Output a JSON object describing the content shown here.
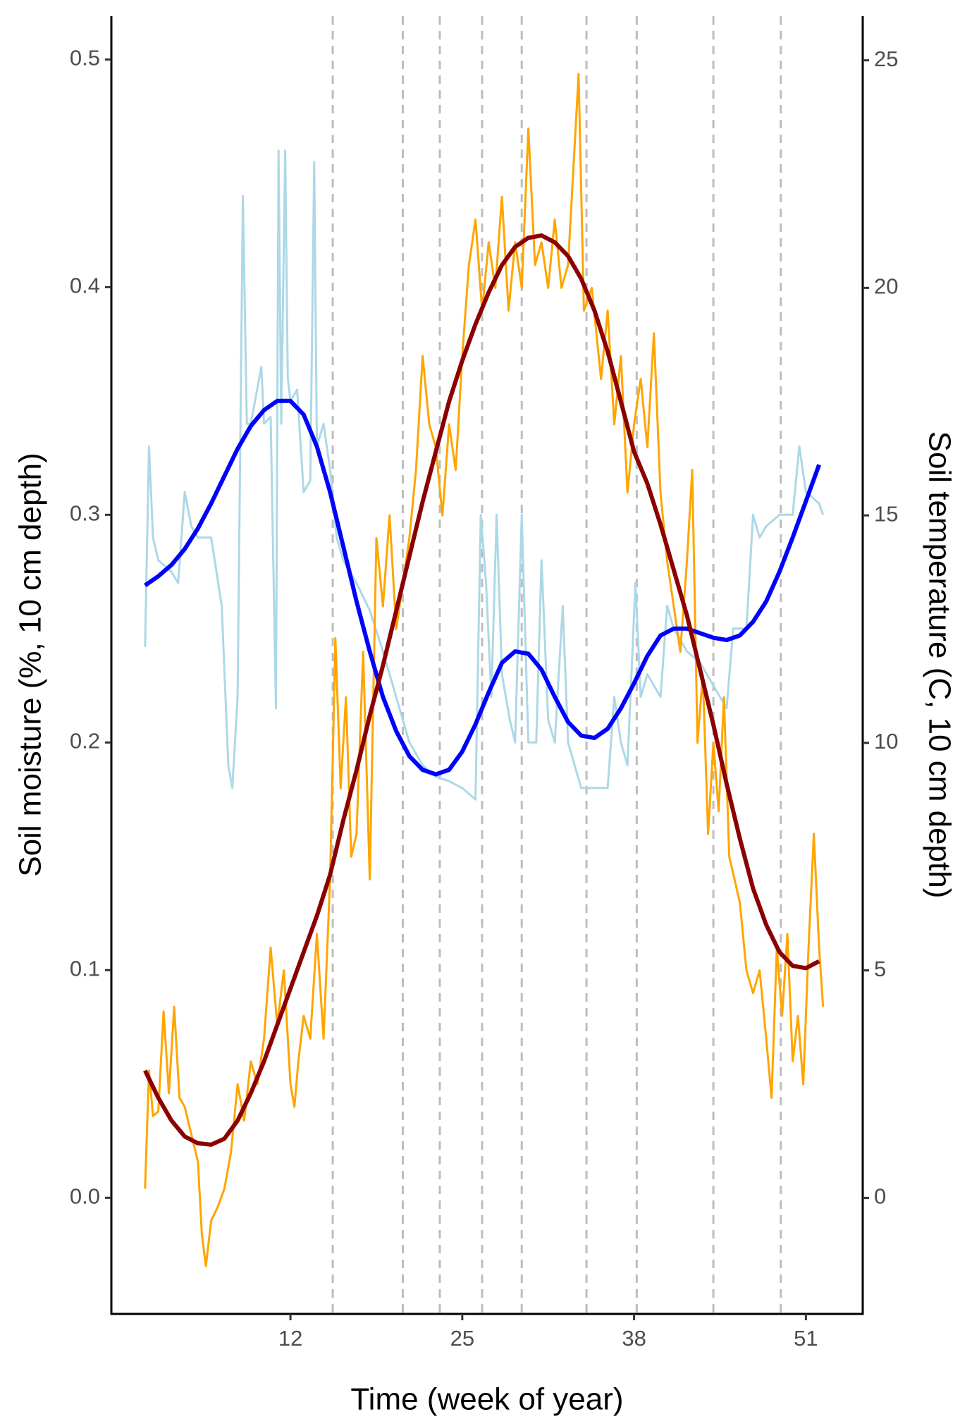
{
  "chart_data": {
    "type": "line",
    "xlabel": "Time (week of year)",
    "ylabel": "Soil moisture (%, 10 cm depth)",
    "y2label": "Soil temperature (C, 10 cm depth)",
    "ylabel_color": "#0000ff",
    "y2label_color": "#ffa500",
    "xlim": [
      -1.55,
      55.3
    ],
    "xticks": [
      12,
      25,
      38,
      51
    ],
    "ylim": [
      -0.051,
      0.519
    ],
    "yticks": [
      {
        "value": 0,
        "label": "0.0"
      },
      0.1,
      0.2,
      0.3,
      0.4,
      0.5
    ],
    "y2lim": [
      -2.55,
      25.97
    ],
    "y2ticks": [
      0,
      5,
      10,
      15,
      20,
      25
    ],
    "grid": false,
    "vlines": [
      15.2,
      20.5,
      23.3,
      26.5,
      29.5,
      34.4,
      38.2,
      44.0,
      49.1
    ],
    "vline_color": "#bdbdbd",
    "series": [
      {
        "color": "#add8e6",
        "width": 3,
        "x": [
          1.0,
          1.3,
          1.6,
          2,
          3,
          3.5,
          4,
          4.5,
          5,
          6,
          6.8,
          7.3,
          7.6,
          8,
          8.4,
          8.7,
          9,
          9.8,
          10,
          10.5,
          10.9,
          11.1,
          11.3,
          11.6,
          11.8,
          12,
          12.5,
          13,
          13.5,
          13.8,
          14,
          14.5,
          15,
          15.5,
          16,
          17,
          18,
          19,
          20,
          21,
          22,
          23,
          24,
          25,
          26,
          26.4,
          26.8,
          27.2,
          27.6,
          28,
          28.6,
          29,
          29.5,
          30,
          30.6,
          31,
          31.5,
          32,
          32.6,
          33,
          33.5,
          34,
          35,
          36,
          36.5,
          37,
          37.5,
          38.1,
          38.5,
          39,
          40,
          40.5,
          41,
          42,
          43,
          44,
          45,
          45.5,
          46,
          46.5,
          47,
          47.5,
          48,
          49,
          50,
          50.5,
          51,
          52,
          52.3
        ],
        "values": [
          0.242,
          0.33,
          0.29,
          0.28,
          0.275,
          0.27,
          0.31,
          0.295,
          0.29,
          0.29,
          0.26,
          0.19,
          0.18,
          0.22,
          0.44,
          0.34,
          0.34,
          0.365,
          0.34,
          0.343,
          0.215,
          0.46,
          0.34,
          0.46,
          0.36,
          0.35,
          0.355,
          0.31,
          0.315,
          0.455,
          0.33,
          0.34,
          0.32,
          0.29,
          0.28,
          0.27,
          0.258,
          0.24,
          0.22,
          0.2,
          0.19,
          0.185,
          0.183,
          0.18,
          0.175,
          0.3,
          0.27,
          0.22,
          0.3,
          0.23,
          0.21,
          0.2,
          0.3,
          0.2,
          0.2,
          0.28,
          0.21,
          0.2,
          0.26,
          0.2,
          0.19,
          0.18,
          0.18,
          0.18,
          0.22,
          0.2,
          0.19,
          0.27,
          0.22,
          0.23,
          0.22,
          0.26,
          0.25,
          0.24,
          0.235,
          0.225,
          0.215,
          0.25,
          0.25,
          0.25,
          0.3,
          0.29,
          0.295,
          0.3,
          0.3,
          0.33,
          0.31,
          0.305,
          0.3
        ]
      },
      {
        "color": "#ffa500",
        "width": 3,
        "axis": "y2",
        "x": [
          1.0,
          1.3,
          1.6,
          2,
          2.4,
          2.8,
          3.2,
          3.6,
          4,
          4.5,
          5,
          5.3,
          5.6,
          6,
          6.5,
          7,
          7.5,
          8,
          8.5,
          9,
          9.5,
          10,
          10.5,
          11,
          11.5,
          12,
          12.3,
          12.6,
          13,
          13.5,
          14,
          14.5,
          15,
          15.4,
          15.8,
          16.2,
          16.6,
          17,
          17.5,
          18,
          18.5,
          19,
          19.5,
          20,
          20.5,
          21,
          21.5,
          22,
          22.5,
          23,
          23.5,
          24,
          24.5,
          25,
          25.5,
          26,
          26.5,
          27,
          27.5,
          28,
          28.5,
          29,
          29.5,
          30,
          30.5,
          31,
          31.5,
          32,
          32.5,
          33,
          33.8,
          34.2,
          34.8,
          35.5,
          36,
          36.5,
          37,
          37.5,
          38,
          38.5,
          39,
          39.5,
          40,
          40.5,
          41,
          41.5,
          42,
          42.4,
          42.8,
          43.2,
          43.6,
          44,
          44.4,
          44.8,
          45.2,
          45.6,
          46,
          46.5,
          47,
          47.5,
          48,
          48.4,
          48.8,
          49.2,
          49.6,
          50,
          50.4,
          50.8,
          51.2,
          51.6,
          52,
          52.3
        ],
        "values": [
          0.2,
          2.8,
          1.8,
          1.9,
          4.1,
          2.3,
          4.2,
          2.2,
          2.0,
          1.4,
          0.8,
          -0.8,
          -1.5,
          -0.5,
          -0.2,
          0.2,
          1.0,
          2.5,
          1.7,
          3.0,
          2.5,
          3.5,
          5.5,
          3.8,
          5.0,
          2.5,
          2.0,
          3.0,
          4.0,
          3.5,
          5.8,
          3.5,
          7.0,
          12.3,
          9.0,
          11.0,
          7.5,
          8.0,
          12.0,
          7.0,
          14.5,
          13.0,
          15.0,
          12.5,
          13.5,
          14.5,
          16.0,
          18.5,
          17.0,
          16.5,
          15.0,
          17.0,
          16.0,
          18.5,
          20.5,
          21.5,
          19.5,
          21.0,
          20.0,
          22.0,
          19.5,
          21.0,
          20.0,
          23.5,
          20.5,
          21.0,
          20.0,
          21.5,
          20.0,
          20.5,
          24.7,
          19.5,
          20.0,
          18.0,
          19.5,
          17.0,
          18.5,
          15.5,
          17.0,
          18.0,
          16.5,
          19.0,
          15.5,
          14.0,
          13.0,
          12.0,
          14.0,
          16.0,
          10.0,
          11.5,
          8.0,
          10.0,
          8.5,
          11.0,
          7.5,
          7.0,
          6.5,
          5.0,
          4.5,
          5.0,
          3.5,
          2.2,
          5.5,
          4.0,
          5.8,
          3.0,
          4.0,
          2.5,
          5.5,
          8.0,
          5.5,
          4.2
        ]
      },
      {
        "color": "#0000ff",
        "width": 6,
        "x": [
          1,
          2,
          3,
          4,
          5,
          6,
          7,
          8,
          9,
          10,
          11,
          12,
          13,
          14,
          15,
          16,
          17,
          18,
          19,
          20,
          21,
          22,
          23,
          24,
          25,
          26,
          27,
          28,
          29,
          30,
          31,
          32,
          33,
          34,
          35,
          36,
          37,
          38,
          39,
          40,
          41,
          42,
          43,
          44,
          45,
          46,
          47,
          48,
          49,
          50,
          51,
          52
        ],
        "values": [
          0.269,
          0.273,
          0.278,
          0.285,
          0.294,
          0.305,
          0.317,
          0.329,
          0.339,
          0.346,
          0.35,
          0.35,
          0.344,
          0.33,
          0.31,
          0.286,
          0.262,
          0.24,
          0.22,
          0.205,
          0.194,
          0.188,
          0.186,
          0.188,
          0.196,
          0.208,
          0.222,
          0.235,
          0.24,
          0.239,
          0.232,
          0.22,
          0.209,
          0.203,
          0.202,
          0.206,
          0.215,
          0.226,
          0.238,
          0.247,
          0.25,
          0.25,
          0.248,
          0.246,
          0.245,
          0.247,
          0.253,
          0.262,
          0.275,
          0.29,
          0.306,
          0.322
        ]
      },
      {
        "color": "#8b0000",
        "width": 6,
        "axis": "y2",
        "x": [
          1,
          2,
          3,
          4,
          5,
          6,
          7,
          8,
          9,
          10,
          11,
          12,
          13,
          14,
          15,
          16,
          17,
          18,
          19,
          20,
          21,
          22,
          23,
          24,
          25,
          26,
          27,
          28,
          29,
          30,
          31,
          32,
          33,
          34,
          35,
          36,
          37,
          38,
          39,
          40,
          41,
          42,
          43,
          44,
          45,
          46,
          47,
          48,
          49,
          50,
          51,
          52
        ],
        "values": [
          2.8,
          2.2,
          1.7,
          1.35,
          1.2,
          1.17,
          1.3,
          1.7,
          2.3,
          3.0,
          3.8,
          4.6,
          5.4,
          6.2,
          7.1,
          8.3,
          9.4,
          10.6,
          11.7,
          12.9,
          14.1,
          15.3,
          16.4,
          17.5,
          18.4,
          19.2,
          19.9,
          20.5,
          20.9,
          21.1,
          21.15,
          21.0,
          20.7,
          20.2,
          19.5,
          18.6,
          17.5,
          16.4,
          15.7,
          14.8,
          13.8,
          12.8,
          11.6,
          10.4,
          9.1,
          7.9,
          6.8,
          6.0,
          5.4,
          5.1,
          5.05,
          5.2
        ]
      }
    ]
  }
}
